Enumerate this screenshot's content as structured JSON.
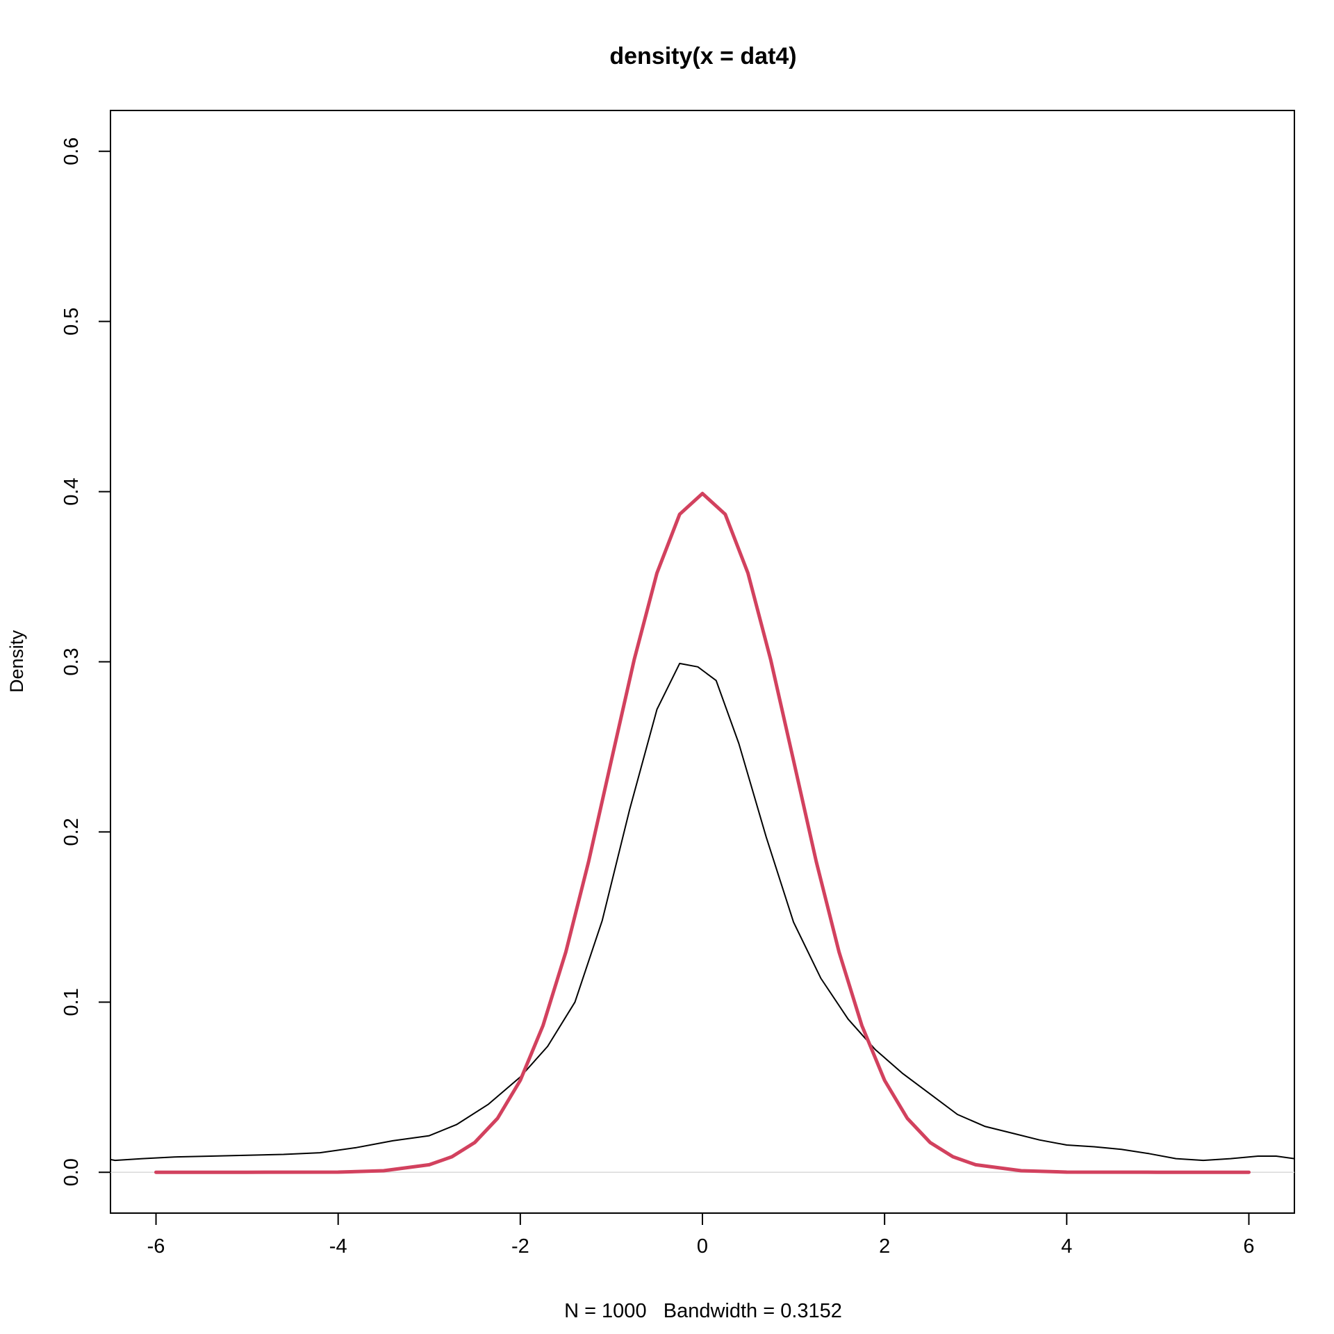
{
  "chart_data": {
    "type": "line",
    "title": "density(x = dat4)",
    "xlabel": "N = 1000   Bandwidth = 0.3152",
    "ylabel": "Density",
    "xlim": [
      -6.5,
      6.5
    ],
    "ylim": [
      -0.024,
      0.624
    ],
    "x_ticks": [
      -6,
      -4,
      -2,
      0,
      2,
      4,
      6
    ],
    "x_tick_labels": [
      "-6",
      "-4",
      "-2",
      "0",
      "2",
      "4",
      "6"
    ],
    "y_ticks": [
      0.0,
      0.1,
      0.2,
      0.3,
      0.4,
      0.5,
      0.6
    ],
    "y_tick_labels": [
      "0.0",
      "0.1",
      "0.2",
      "0.3",
      "0.4",
      "0.5",
      "0.6"
    ],
    "grid": false,
    "zero_line": true,
    "series": [
      {
        "color": "#000000",
        "line_width": 1,
        "x": [
          -6.55,
          -6.45,
          -6.15,
          -5.8,
          -5.4,
          -5.0,
          -4.6,
          -4.2,
          -3.8,
          -3.4,
          -3.0,
          -2.7,
          -2.35,
          -2.0,
          -1.7,
          -1.4,
          -1.1,
          -0.8,
          -0.5,
          -0.25,
          -0.05,
          0.15,
          0.4,
          0.7,
          1.0,
          1.3,
          1.6,
          1.9,
          2.2,
          2.5,
          2.8,
          3.1,
          3.4,
          3.7,
          4.0,
          4.3,
          4.6,
          4.9,
          5.2,
          5.5,
          5.8,
          6.1,
          6.3,
          6.5
        ],
        "y": [
          0.008,
          0.007,
          0.008,
          0.009,
          0.0095,
          0.01,
          0.0105,
          0.0115,
          0.0145,
          0.0185,
          0.0215,
          0.028,
          0.04,
          0.056,
          0.074,
          0.1,
          0.148,
          0.213,
          0.272,
          0.299,
          0.297,
          0.289,
          0.252,
          0.197,
          0.147,
          0.114,
          0.09,
          0.072,
          0.058,
          0.046,
          0.034,
          0.027,
          0.023,
          0.019,
          0.016,
          0.015,
          0.0135,
          0.011,
          0.008,
          0.007,
          0.008,
          0.0095,
          0.0095,
          0.008
        ]
      },
      {
        "color": "#D2415E",
        "line_width": 2.5,
        "distribution": "dnorm(x)",
        "x": [
          -6.0,
          -5.0,
          -4.0,
          -3.5,
          -3.0,
          -2.75,
          -2.5,
          -2.25,
          -2.0,
          -1.75,
          -1.5,
          -1.25,
          -1.0,
          -0.75,
          -0.5,
          -0.25,
          0.0,
          0.25,
          0.5,
          0.75,
          1.0,
          1.25,
          1.5,
          1.75,
          2.0,
          2.25,
          2.5,
          2.75,
          3.0,
          3.5,
          4.0,
          5.0,
          6.0
        ],
        "y": [
          0.0,
          0.0,
          0.0001,
          0.0009,
          0.0044,
          0.0091,
          0.0175,
          0.0317,
          0.054,
          0.0863,
          0.1295,
          0.1826,
          0.242,
          0.3011,
          0.3521,
          0.3867,
          0.3989,
          0.3867,
          0.3521,
          0.3011,
          0.242,
          0.1826,
          0.1295,
          0.0863,
          0.054,
          0.0317,
          0.0175,
          0.0091,
          0.0044,
          0.0009,
          0.0001,
          0.0,
          0.0
        ]
      }
    ]
  }
}
